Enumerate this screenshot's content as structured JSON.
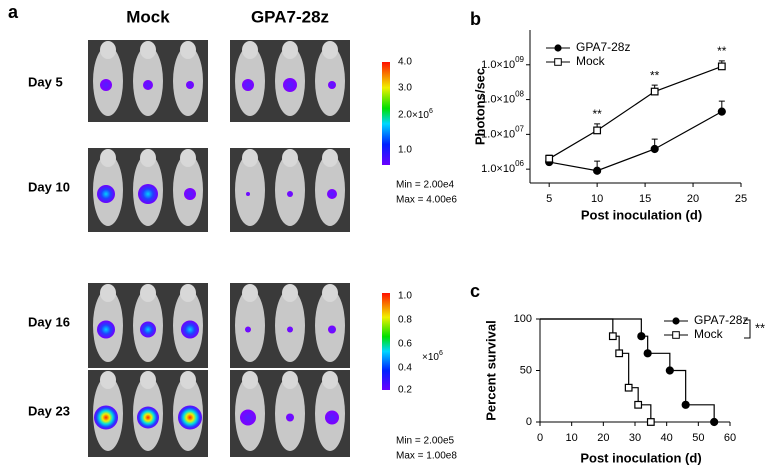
{
  "panel_a": {
    "label": "a",
    "columns": [
      "Mock",
      "GPA7-28z"
    ],
    "rows": [
      "Day 5",
      "Day 10",
      "Day 16",
      "Day 23"
    ],
    "scales": [
      {
        "ticks": [
          "4.0",
          "3.0",
          "2.0",
          "1.0"
        ],
        "multiplier": "×10",
        "exponent": "6",
        "min": "Min = 2.00e4",
        "max": "Max = 4.00e6"
      },
      {
        "ticks": [
          "1.0",
          "0.8",
          "0.6",
          "0.4",
          "0.2"
        ],
        "multiplier": "×10",
        "exponent": "6",
        "min": "Min = 2.00e5",
        "max": "Max = 1.00e8"
      }
    ]
  },
  "chart_data": [
    {
      "type": "line",
      "panel": "b",
      "log_y": true,
      "ylabel": "Photons/sec",
      "xlabel": "Post inoculation (d)",
      "x": [
        5,
        10,
        16,
        23
      ],
      "series": [
        {
          "name": "GPA7-28z",
          "color": "#000000",
          "marker": "circle",
          "values": [
            1600000,
            900000,
            3800000,
            45000000
          ],
          "errors": [
            500000,
            800000,
            3500000,
            45000000
          ]
        },
        {
          "name": "Mock",
          "color": "#000000",
          "marker": "square",
          "values": [
            2000000,
            13000000,
            170000000,
            900000000
          ],
          "errors": [
            500000,
            7000000,
            90000000,
            400000000
          ]
        }
      ],
      "annotations": [
        {
          "text": "**",
          "x": 10
        },
        {
          "text": "**",
          "x": 16
        },
        {
          "text": "**",
          "x": 23
        }
      ],
      "xlim": [
        3,
        25
      ],
      "xticks": [
        5,
        10,
        15,
        20,
        25
      ],
      "ylim": [
        400000,
        10000000000
      ],
      "yticks": [
        {
          "value": 1000000,
          "label": "1.0×10",
          "exponent": "06"
        },
        {
          "value": 10000000,
          "label": "1.0×10",
          "exponent": "07"
        },
        {
          "value": 100000000,
          "label": "1.0×10",
          "exponent": "08"
        },
        {
          "value": 1000000000,
          "label": "1.0×10",
          "exponent": "09"
        }
      ],
      "legend": "upper left"
    },
    {
      "type": "step",
      "panel": "c",
      "ylabel": "Percent survival",
      "xlabel": "Post inoculation (d)",
      "series": [
        {
          "name": "GPA7-28z",
          "color": "#000000",
          "marker": "circle",
          "x": [
            0,
            32,
            34,
            41,
            46,
            55
          ],
          "values": [
            100,
            83.3,
            66.7,
            50,
            16.7,
            0
          ]
        },
        {
          "name": "Mock",
          "color": "#000000",
          "marker": "square",
          "x": [
            0,
            23,
            25,
            28,
            31,
            35
          ],
          "values": [
            100,
            83.3,
            66.7,
            33.3,
            16.7,
            0
          ]
        }
      ],
      "significance": "**",
      "xlim": [
        0,
        60
      ],
      "xticks": [
        0,
        10,
        20,
        30,
        40,
        50,
        60
      ],
      "ylim": [
        0,
        100
      ],
      "yticks": [
        0,
        50,
        100
      ],
      "legend": "upper right"
    }
  ]
}
